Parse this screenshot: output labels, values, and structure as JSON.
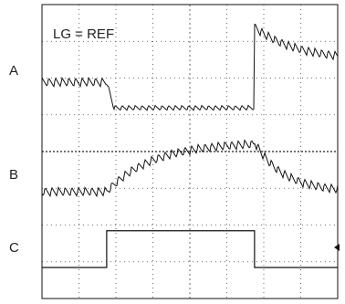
{
  "chart_data": {
    "type": "line",
    "title": "",
    "annotation": "LG = REF",
    "channels": [
      {
        "name": "A",
        "level_div": {
          "before": 0.0,
          "during": -0.7,
          "spike": 1.5,
          "after": 0.6
        },
        "ripple_div": 0.24,
        "ripple_period_div": 0.18
      },
      {
        "name": "B",
        "level_div": {
          "before": 0.0,
          "during": 1.35,
          "after": 0.0
        },
        "ripple_div": 0.24,
        "ripple_period_div": 0.18
      },
      {
        "name": "C",
        "level_div": {
          "low": 0.0,
          "high": 1.0
        }
      }
    ],
    "step_on_div": 1.75,
    "step_off_div": 5.75,
    "x_divisions": 8,
    "y_divisions": 8,
    "grid": true,
    "colors": {
      "trace": "#111111",
      "grid": "#444444",
      "frame": "#111111"
    }
  }
}
